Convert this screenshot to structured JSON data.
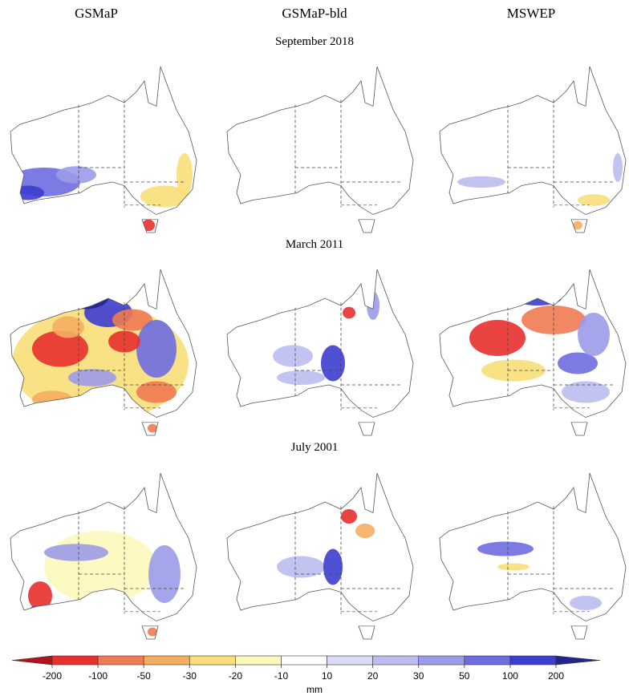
{
  "columns": [
    "GSMaP",
    "GSMaP-bld",
    "MSWEP"
  ],
  "rows": [
    "September 2018",
    "March 2011",
    "July 2001"
  ],
  "colorbar": {
    "ticks": [
      -200,
      -100,
      -50,
      -30,
      -20,
      -10,
      10,
      20,
      30,
      50,
      100,
      200
    ],
    "colors": [
      "#b3121b",
      "#e8302e",
      "#f07a52",
      "#f5ad62",
      "#f8df78",
      "#fdf8bb",
      "#ffffff",
      "#dcdcf8",
      "#bcbcf1",
      "#9b9be9",
      "#6d6de0",
      "#3d3dcf",
      "#24248f"
    ],
    "unit": "mm"
  }
}
